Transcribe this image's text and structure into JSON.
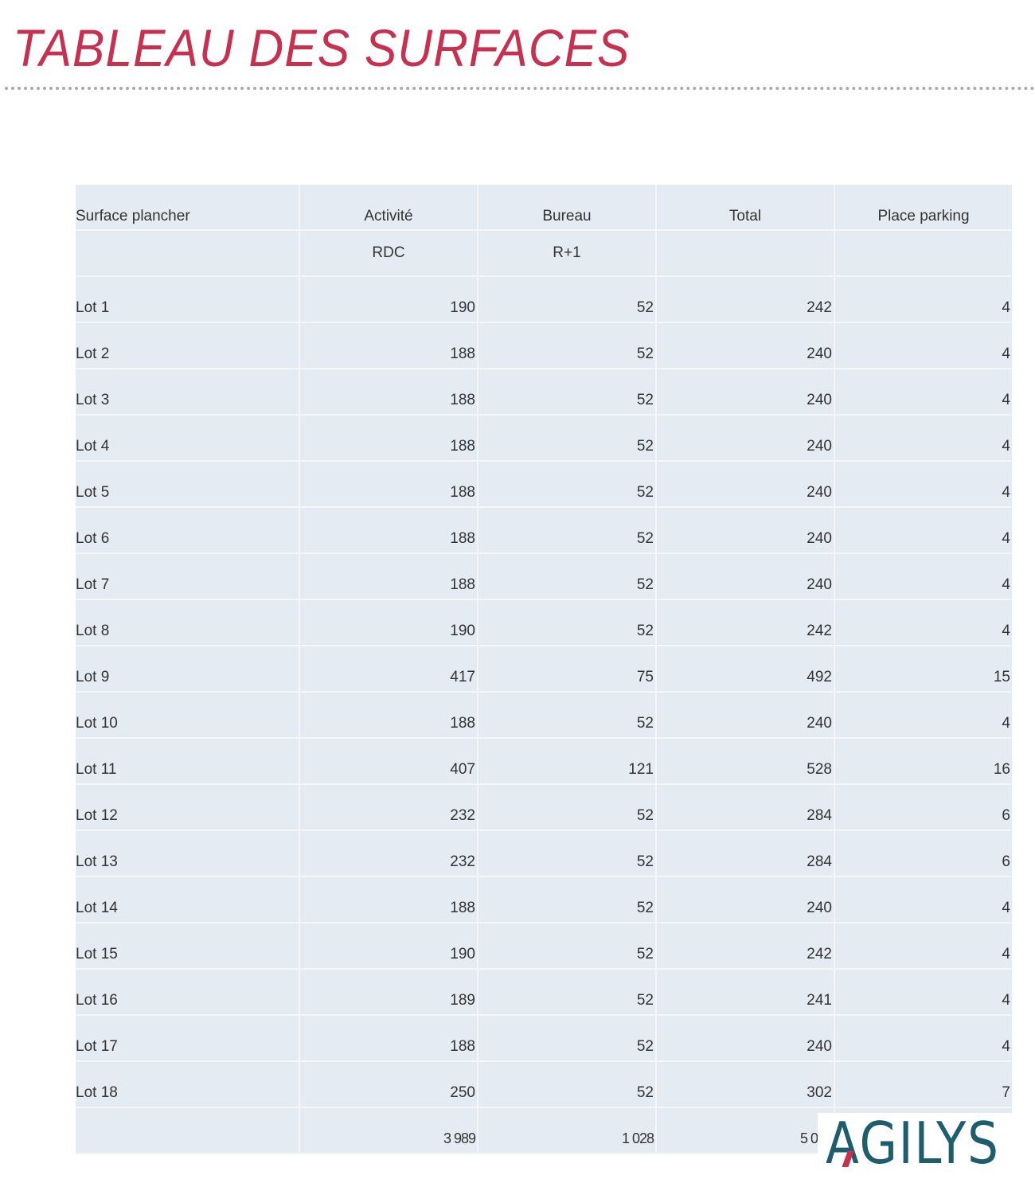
{
  "title": "TABLEAU DES SURFACES",
  "table": {
    "headers": [
      "Surface plancher",
      "Activité",
      "Bureau",
      "Total",
      "Place parking"
    ],
    "subheaders": [
      "",
      "RDC",
      "R+1",
      "",
      ""
    ],
    "rows": [
      [
        "Lot 1",
        "190",
        "52",
        "242",
        "4"
      ],
      [
        "Lot 2",
        "188",
        "52",
        "240",
        "4"
      ],
      [
        "Lot 3",
        "188",
        "52",
        "240",
        "4"
      ],
      [
        "Lot 4",
        "188",
        "52",
        "240",
        "4"
      ],
      [
        "Lot 5",
        "188",
        "52",
        "240",
        "4"
      ],
      [
        "Lot 6",
        "188",
        "52",
        "240",
        "4"
      ],
      [
        "Lot 7",
        "188",
        "52",
        "240",
        "4"
      ],
      [
        "Lot 8",
        "190",
        "52",
        "242",
        "4"
      ],
      [
        "Lot 9",
        "417",
        "75",
        "492",
        "15"
      ],
      [
        "Lot 10",
        "188",
        "52",
        "240",
        "4"
      ],
      [
        "Lot 11",
        "407",
        "121",
        "528",
        "16"
      ],
      [
        "Lot 12",
        "232",
        "52",
        "284",
        "6"
      ],
      [
        "Lot 13",
        "232",
        "52",
        "284",
        "6"
      ],
      [
        "Lot 14",
        "188",
        "52",
        "240",
        "4"
      ],
      [
        "Lot 15",
        "190",
        "52",
        "242",
        "4"
      ],
      [
        "Lot 16",
        "189",
        "52",
        "241",
        "4"
      ],
      [
        "Lot 17",
        "188",
        "52",
        "240",
        "4"
      ],
      [
        "Lot 18",
        "250",
        "52",
        "302",
        "7"
      ]
    ],
    "totals": [
      "",
      "3 989",
      "1 028",
      "5 017",
      ""
    ]
  },
  "logo": {
    "text": "AGILYS",
    "color": "#1d5e6e",
    "accent": "#c8304f"
  },
  "colors": {
    "title": "#c8304f",
    "table_bg": "#e5ebf3"
  }
}
